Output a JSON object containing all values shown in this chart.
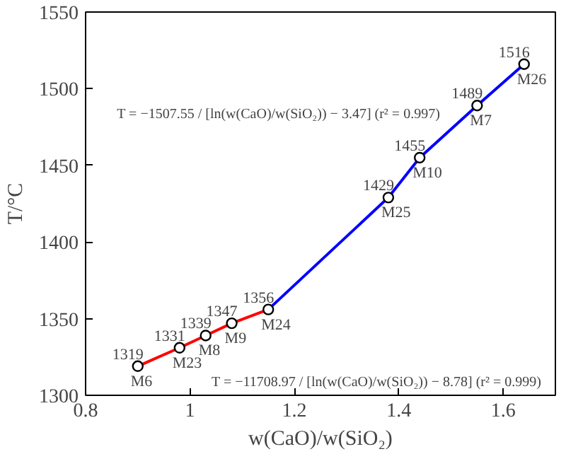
{
  "chart_data": {
    "type": "line",
    "xlabel": "w(CaO)/w(SiO₂)",
    "ylabel": "T/°C",
    "xlim": [
      0.8,
      1.7
    ],
    "ylim": [
      1300,
      1550
    ],
    "xticks": [
      0.8,
      1.0,
      1.2,
      1.4,
      1.6
    ],
    "yticks": [
      1300,
      1350,
      1400,
      1450,
      1500,
      1550
    ],
    "grid": false,
    "series": [
      {
        "color": "#ff0000",
        "x": [
          0.9,
          0.98,
          1.03,
          1.08,
          1.15
        ],
        "values": [
          1319,
          1331,
          1339,
          1347,
          1356
        ]
      },
      {
        "color": "#0000ff",
        "x": [
          1.15,
          1.38,
          1.44,
          1.55,
          1.64
        ],
        "values": [
          1356,
          1429,
          1455,
          1489,
          1516
        ]
      },
      {
        "type": "scatter",
        "color": "#000000",
        "marker": "circle",
        "x": [
          0.9,
          0.98,
          1.03,
          1.08,
          1.15,
          1.38,
          1.44,
          1.55,
          1.64
        ],
        "values": [
          1319,
          1331,
          1339,
          1347,
          1356,
          1429,
          1455,
          1489,
          1516
        ],
        "value_labels": [
          "1319",
          "1331",
          "1339",
          "1347",
          "1356",
          "1429",
          "1455",
          "1489",
          "1516"
        ]
      }
    ],
    "annotations": [
      {
        "text": "M6",
        "x": 0.9,
        "y": 1319
      },
      {
        "text": "M23",
        "x": 0.98,
        "y": 1331
      },
      {
        "text": "M8",
        "x": 1.03,
        "y": 1339
      },
      {
        "text": "M9",
        "x": 1.08,
        "y": 1347
      },
      {
        "text": "M24",
        "x": 1.15,
        "y": 1356
      },
      {
        "text": "M25",
        "x": 1.38,
        "y": 1429
      },
      {
        "text": "M10",
        "x": 1.44,
        "y": 1455
      },
      {
        "text": "M7",
        "x": 1.55,
        "y": 1489
      },
      {
        "text": "M26",
        "x": 1.64,
        "y": 1516
      },
      "T = −1507.55 / [ln(w(CaO)/w(SiO₂)) − 3.47]  (r² = 0.997)",
      "T = −11708.97 / [ln(w(CaO)/w(SiO₂)) − 8.78]  (r² = 0.999)"
    ]
  }
}
